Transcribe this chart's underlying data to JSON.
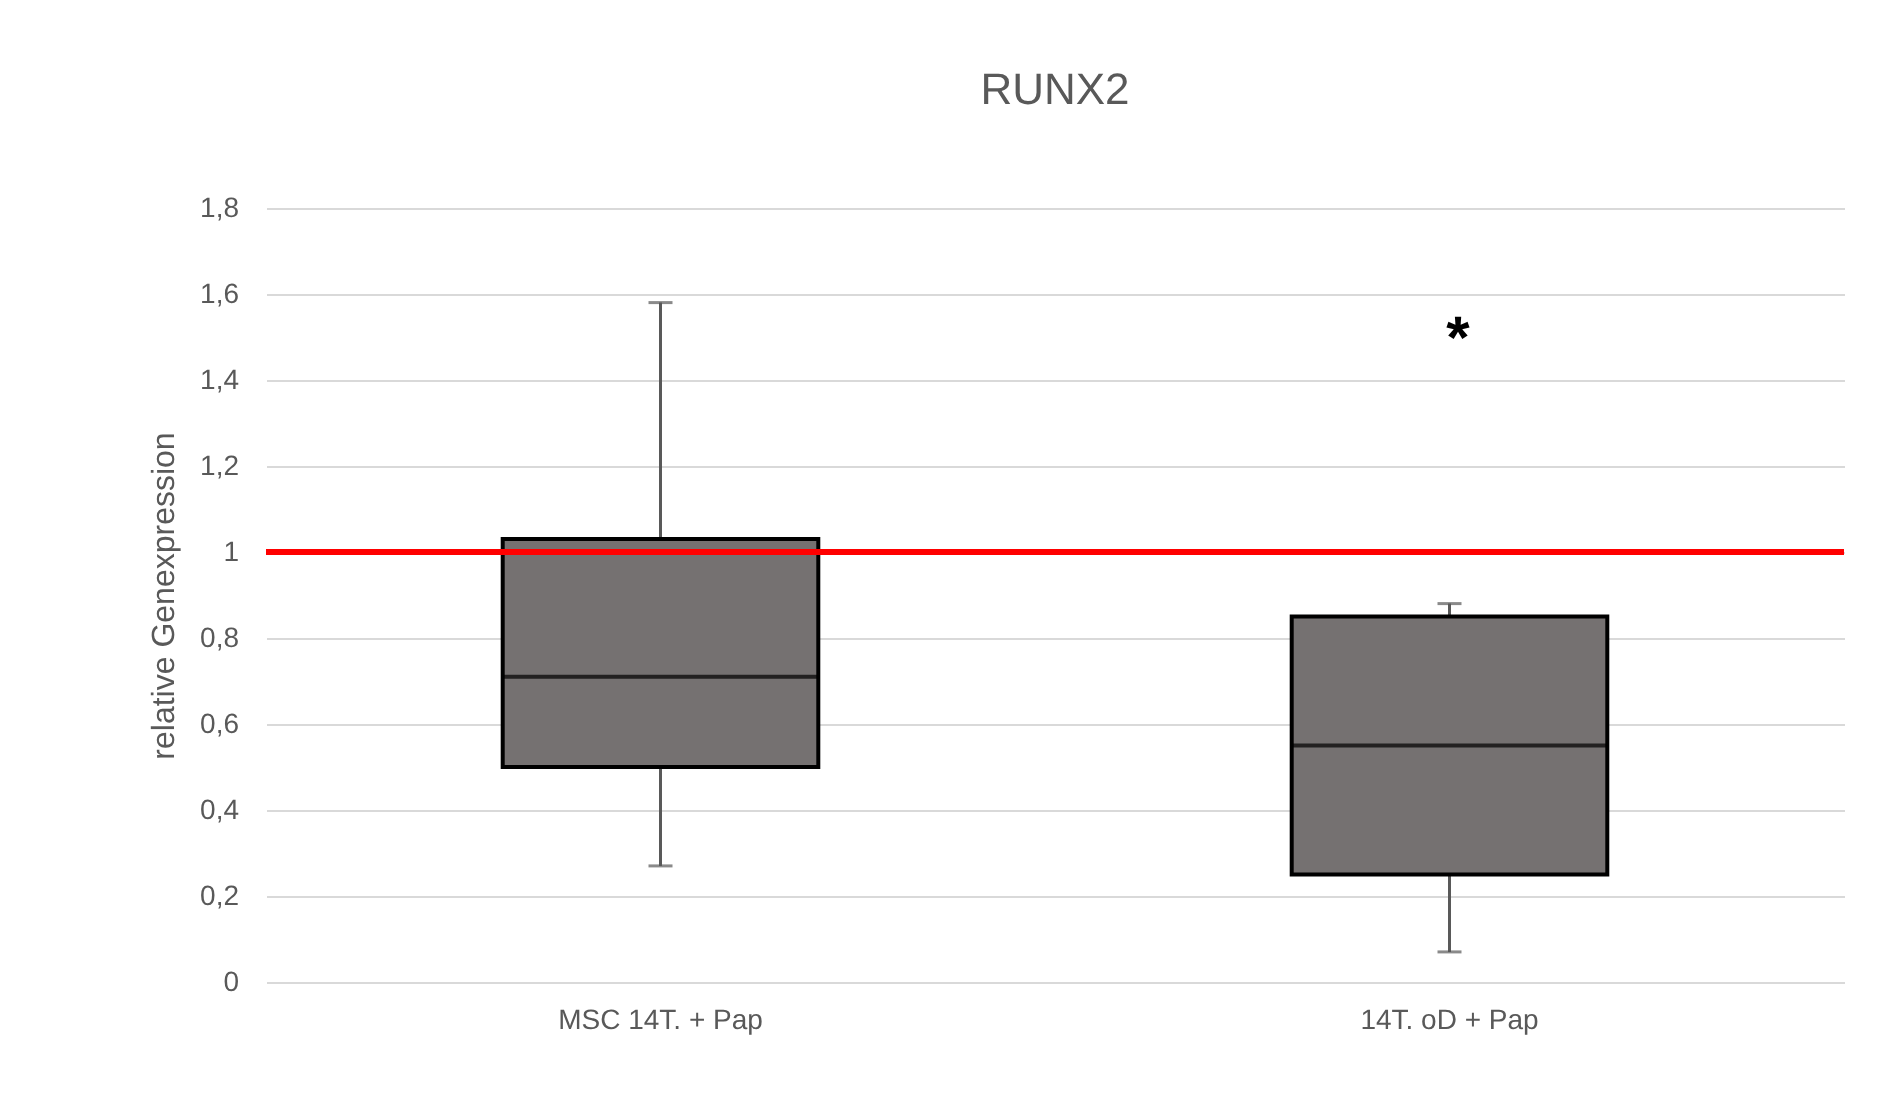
{
  "chart_data": {
    "type": "box",
    "title": "RUNX2",
    "ylabel": "relative Genexpression",
    "categories": [
      "MSC 14T. + Pap",
      "14T. oD + Pap"
    ],
    "series": [
      {
        "color": "#757171",
        "boxes": [
          {
            "low": 0.27,
            "q1": 0.5,
            "median": 0.71,
            "q3": 1.03,
            "high": 1.58
          },
          {
            "low": 0.07,
            "q1": 0.25,
            "median": 0.55,
            "q3": 0.85,
            "high": 0.88
          }
        ]
      }
    ],
    "ylim": [
      0,
      1.8
    ],
    "yticks": [
      {
        "value": 0,
        "label": "0"
      },
      {
        "value": 0.2,
        "label": "0,2"
      },
      {
        "value": 0.4,
        "label": "0,4"
      },
      {
        "value": 0.6,
        "label": "0,6"
      },
      {
        "value": 0.8,
        "label": "0,8"
      },
      {
        "value": 1,
        "label": "1"
      },
      {
        "value": 1.2,
        "label": "1,2"
      },
      {
        "value": 1.4,
        "label": "1,4"
      },
      {
        "value": 1.6,
        "label": "1,6"
      },
      {
        "value": 1.8,
        "label": "1,8"
      }
    ],
    "ref_lines": [
      {
        "axis": "y",
        "value": 1,
        "color": "#ff0000"
      }
    ],
    "annotations": [
      "*"
    ],
    "grid": "y"
  }
}
